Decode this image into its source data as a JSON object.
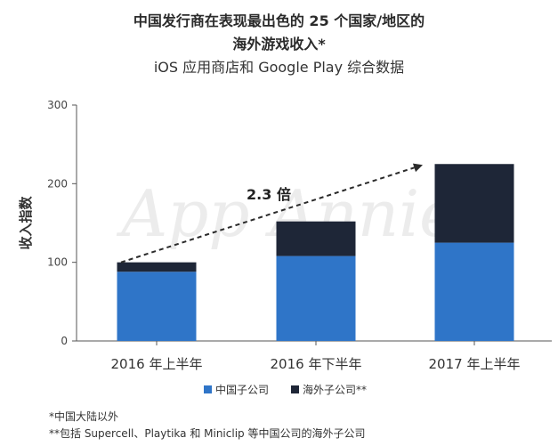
{
  "header": {
    "title_line1": "中国发行商在表现最出色的 25 个国家/地区的",
    "title_line2": "海外游戏收入*",
    "subtitle": "iOS 应用商店和 Google Play 综合数据"
  },
  "watermark": "App Annie",
  "footnotes": [
    "*中国大陆以外",
    "**包括 Supercell、Playtika 和 Miniclip 等中国公司的海外子公司"
  ],
  "colors": {
    "domestic": "#2f75c8",
    "overseas": "#1e2637",
    "axis": "#555555",
    "watermark": "#ececec"
  },
  "chart_data": {
    "type": "bar",
    "stacked": true,
    "categories": [
      "2016 年上半年",
      "2016 年下半年",
      "2017 年上半年"
    ],
    "series": [
      {
        "name": "中国子公司",
        "values": [
          88,
          108,
          125
        ],
        "color": "#2f75c8"
      },
      {
        "name": "海外子公司**",
        "values": [
          12,
          44,
          100
        ],
        "color": "#1e2637"
      }
    ],
    "ylabel": "收入指数",
    "xlabel": "",
    "ylim": [
      0,
      300
    ],
    "yticks": [
      0,
      100,
      200,
      300
    ],
    "legend_position": "bottom",
    "annotation": {
      "text": "2.3 倍",
      "from_category": 0,
      "to_category": 2
    },
    "grid": false
  }
}
